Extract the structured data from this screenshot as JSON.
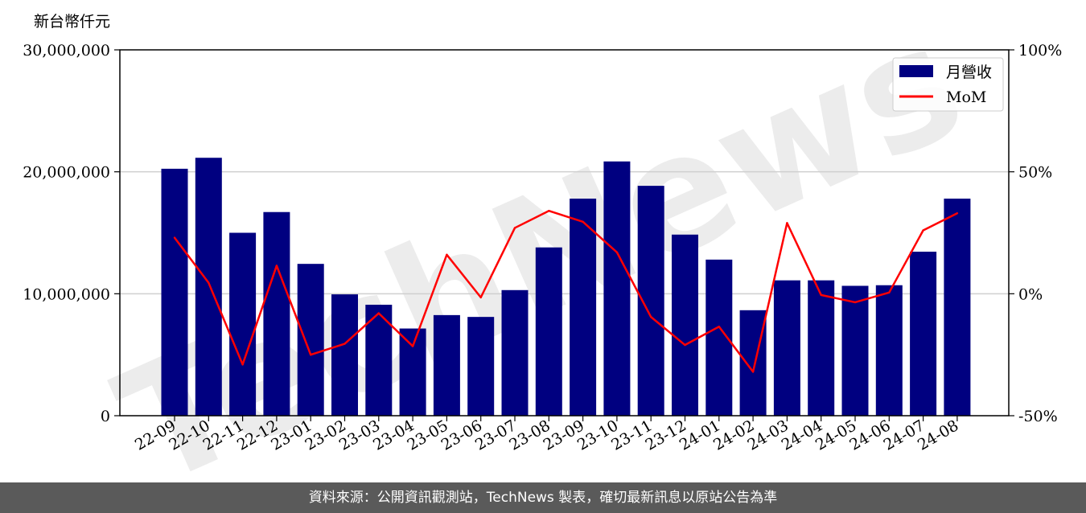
{
  "chart_data": {
    "type": "bar",
    "y_unit_label": "新台幣仟元",
    "categories": [
      "22-09",
      "22-10",
      "22-11",
      "22-12",
      "23-01",
      "23-02",
      "23-03",
      "23-04",
      "23-05",
      "23-06",
      "23-07",
      "23-08",
      "23-09",
      "23-10",
      "23-11",
      "23-12",
      "24-01",
      "24-02",
      "24-03",
      "24-04",
      "24-05",
      "24-06",
      "24-07",
      "24-08"
    ],
    "series": [
      {
        "name": "月營收",
        "kind": "bar",
        "axis": "left",
        "color": "#000080",
        "values": [
          20250000,
          21150000,
          15000000,
          16700000,
          12450000,
          9950000,
          9100000,
          7150000,
          8250000,
          8100000,
          10300000,
          13800000,
          17800000,
          20850000,
          18850000,
          14850000,
          12800000,
          8650000,
          11100000,
          11100000,
          10650000,
          10700000,
          13450000,
          17800000
        ]
      },
      {
        "name": "MoM",
        "kind": "line",
        "axis": "right",
        "color": "#ff0000",
        "values": [
          23,
          4.5,
          -29,
          11.5,
          -25,
          -20.5,
          -8,
          -21.5,
          16,
          -1.5,
          27,
          34,
          29.5,
          17,
          -9.5,
          -21,
          -13.5,
          -32,
          29,
          -0.5,
          -3.5,
          0.5,
          26,
          33
        ]
      }
    ],
    "ylim_left": [
      0,
      30000000
    ],
    "ylim_right": [
      -50,
      100
    ],
    "yticks_left": [
      "0",
      "10,000,000",
      "20,000,000",
      "30,000,000"
    ],
    "yticks_left_values": [
      0,
      10000000,
      20000000,
      30000000
    ],
    "yticks_right": [
      "-50%",
      "0%",
      "50%",
      "100%"
    ],
    "yticks_right_values": [
      -50,
      0,
      50,
      100
    ],
    "grid": "horizontal",
    "legend": "top-right",
    "watermark": "TechNews"
  },
  "footer": {
    "source_text": "資料來源：公開資訊觀測站，TechNews 製表，確切最新訊息以原站公告為準"
  }
}
